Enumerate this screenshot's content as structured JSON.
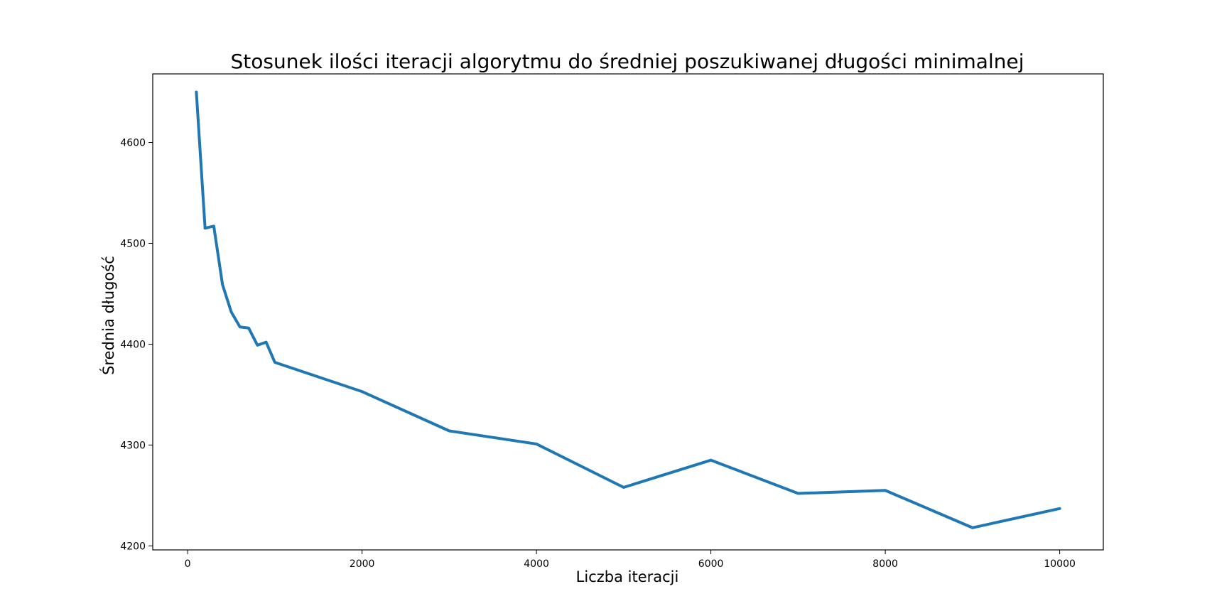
{
  "chart_data": {
    "type": "line",
    "title": "Stosunek ilości iteracji algorytmu do średniej poszukiwanej długości minimalnej",
    "xlabel": "Liczba iteracji",
    "ylabel": "Średnia długość",
    "xlim": [
      -400,
      10500
    ],
    "ylim": [
      4196,
      4668
    ],
    "xticks": [
      0,
      2000,
      4000,
      6000,
      8000,
      10000
    ],
    "yticks": [
      4200,
      4300,
      4400,
      4500,
      4600
    ],
    "grid": false,
    "color": "#1f77b4",
    "series": [
      {
        "x": [
          100,
          200,
          300,
          400,
          500,
          600,
          700,
          800,
          900,
          1000,
          2000,
          3000,
          4000,
          5000,
          6000,
          7000,
          8000,
          9000,
          10000
        ],
        "values": [
          4650,
          4515,
          4517,
          4459,
          4432,
          4417,
          4416,
          4399,
          4402,
          4382,
          4353,
          4314,
          4301,
          4258,
          4285,
          4252,
          4255,
          4218,
          4237
        ]
      }
    ]
  }
}
